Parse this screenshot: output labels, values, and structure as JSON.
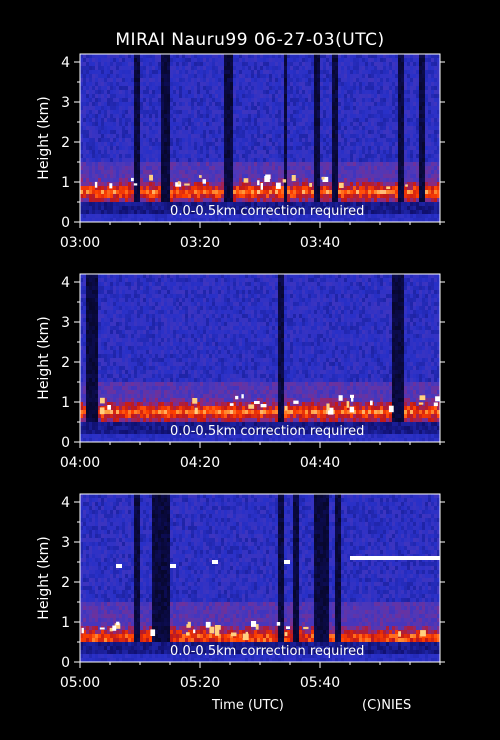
{
  "title": "MIRAI Nauru99 06-27-03(UTC)",
  "colors": {
    "background": "#000000",
    "axis": "#ffffff",
    "colormap": [
      "#05051e",
      "#101070",
      "#2830c8",
      "#5038b8",
      "#8a2a80",
      "#c01818",
      "#ff4000",
      "#ffa040",
      "#ffffff"
    ]
  },
  "footer": {
    "xlabel": "Time (UTC)",
    "credit": "(C)NIES"
  },
  "chart_data": [
    {
      "type": "heatmap",
      "ylabel": "Height (km)",
      "ylim": [
        0,
        4.2
      ],
      "yticks": [
        0,
        1,
        2,
        3,
        4
      ],
      "xlim": [
        "03:00",
        "04:00"
      ],
      "xticks": [
        "03:00",
        "03:20",
        "03:40"
      ],
      "annotation": "0.0-0.5km correction required",
      "cloud_base_km": 0.75,
      "gaps_min": [
        [
          9,
          10
        ],
        [
          13.5,
          15
        ],
        [
          24,
          25.5
        ],
        [
          34,
          34.5
        ],
        [
          39,
          40
        ],
        [
          42,
          43
        ],
        [
          53,
          54
        ],
        [
          56.5,
          57.5
        ]
      ],
      "high_clouds": []
    },
    {
      "type": "heatmap",
      "ylabel": "Height (km)",
      "ylim": [
        0,
        4.2
      ],
      "yticks": [
        0,
        1,
        2,
        3,
        4
      ],
      "xlim": [
        "04:00",
        "05:00"
      ],
      "xticks": [
        "04:00",
        "04:20",
        "04:40"
      ],
      "annotation": "0.0-0.5km correction required",
      "cloud_base_km": 0.75,
      "gaps_min": [
        [
          1,
          3
        ],
        [
          33,
          34
        ],
        [
          52,
          54
        ]
      ],
      "high_clouds": []
    },
    {
      "type": "heatmap",
      "ylabel": "Height (km)",
      "ylim": [
        0,
        4.2
      ],
      "yticks": [
        0,
        1,
        2,
        3,
        4
      ],
      "xlim": [
        "05:00",
        "06:00"
      ],
      "xticks": [
        "05:00",
        "05:20",
        "05:40"
      ],
      "annotation": "0.0-0.5km correction required",
      "cloud_base_km": 0.6,
      "gaps_min": [
        [
          9,
          10
        ],
        [
          12,
          15
        ],
        [
          33,
          34
        ],
        [
          35.5,
          36.5
        ],
        [
          39,
          41.5
        ],
        [
          42.5,
          43.5
        ]
      ],
      "high_clouds": [
        {
          "start_min": 45,
          "end_min": 60,
          "height_km": 2.6
        },
        {
          "start_min": 6,
          "end_min": 7,
          "height_km": 2.4
        },
        {
          "start_min": 15,
          "end_min": 16,
          "height_km": 2.4
        },
        {
          "start_min": 22,
          "end_min": 23,
          "height_km": 2.5
        },
        {
          "start_min": 34,
          "end_min": 35,
          "height_km": 2.5
        }
      ]
    }
  ]
}
